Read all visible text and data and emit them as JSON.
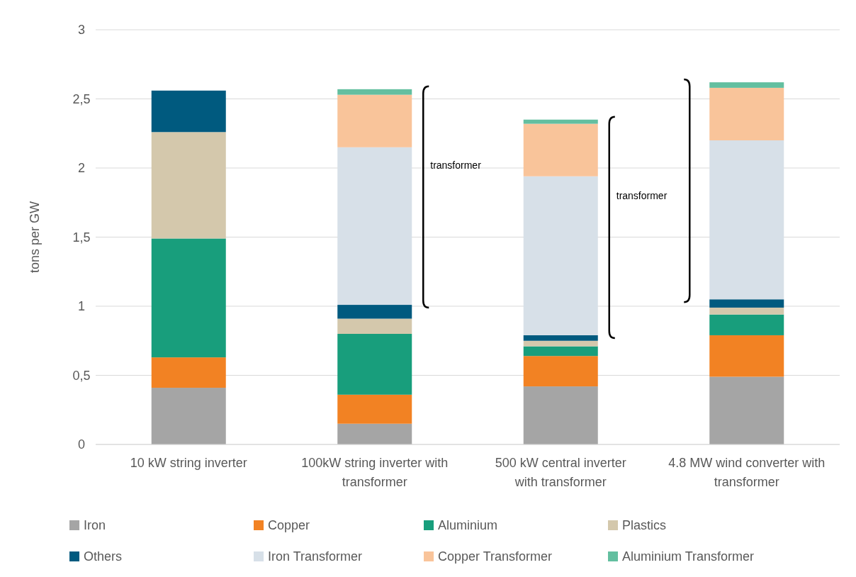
{
  "chart_data": {
    "type": "bar",
    "stacked": true,
    "ylabel": "tons per GW",
    "categories": [
      "10 kW string inverter",
      "100kW string inverter with transformer",
      "500 kW central inverter with transformer",
      "4.8 MW wind converter with transformer"
    ],
    "series": [
      {
        "name": "Iron",
        "color": "#a5a5a5",
        "values": [
          0.41,
          0.15,
          0.42,
          0.49
        ]
      },
      {
        "name": "Copper",
        "color": "#f28223",
        "values": [
          0.22,
          0.21,
          0.22,
          0.3
        ]
      },
      {
        "name": "Aluminium",
        "color": "#189e7c",
        "values": [
          0.86,
          0.44,
          0.07,
          0.15
        ]
      },
      {
        "name": "Plastics",
        "color": "#d4c8ac",
        "values": [
          0.77,
          0.11,
          0.04,
          0.05
        ]
      },
      {
        "name": "Others",
        "color": "#005a7f",
        "values": [
          0.3,
          0.1,
          0.04,
          0.06
        ]
      },
      {
        "name": "Iron Transformer",
        "color": "#d7e0e8",
        "values": [
          0,
          1.14,
          1.15,
          1.15
        ]
      },
      {
        "name": "Copper Transformer",
        "color": "#f9c49a",
        "values": [
          0,
          0.38,
          0.38,
          0.38
        ]
      },
      {
        "name": "Aluminium Transformer",
        "color": "#63bfa0",
        "values": [
          0,
          0.04,
          0.03,
          0.04
        ]
      }
    ],
    "ylim": [
      0,
      3
    ],
    "yticks": [
      0,
      {
        "value": 0.5,
        "label": "0,5"
      },
      1,
      {
        "value": 1.5,
        "label": "1,5"
      },
      2,
      {
        "value": 2.5,
        "label": "2,5"
      },
      3
    ],
    "grid": "y",
    "legend": "bottom",
    "annotations": [
      "transformer",
      "transformer"
    ]
  }
}
